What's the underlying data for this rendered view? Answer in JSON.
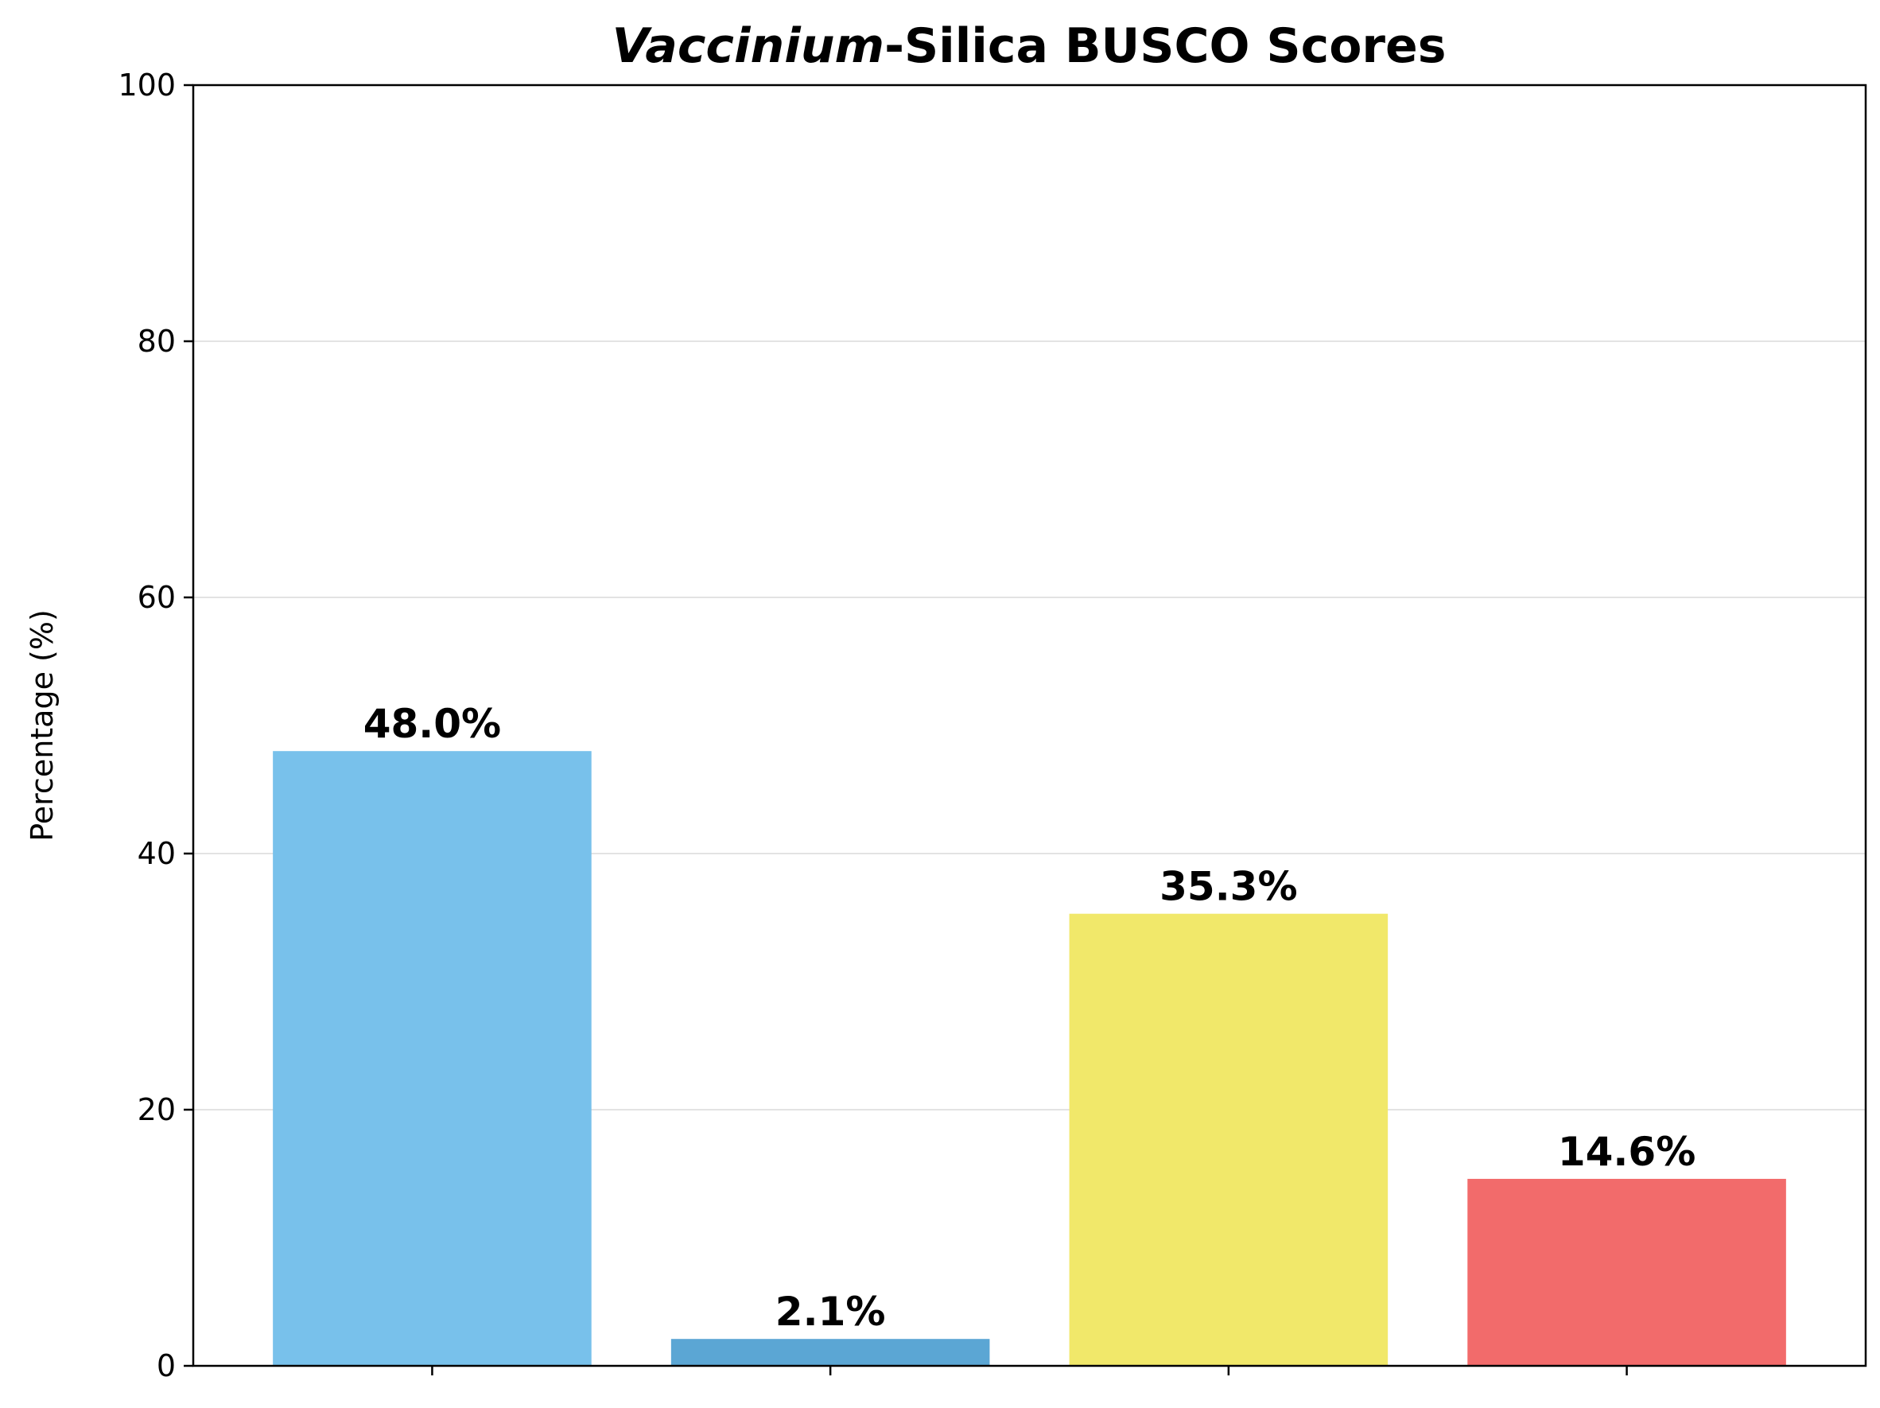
{
  "chart_data": {
    "type": "bar",
    "title_italic": "Vaccinium",
    "title_rest": "-Silica BUSCO Scores",
    "xlabel": "",
    "ylabel": "Percentage (%)",
    "ylim": [
      0,
      100
    ],
    "yticks": [
      0,
      20,
      40,
      60,
      80,
      100
    ],
    "grid": "y",
    "categories": [
      "",
      "",
      "",
      ""
    ],
    "values": [
      48.0,
      2.1,
      35.3,
      14.6
    ],
    "data_labels": [
      "48.0%",
      "2.1%",
      "35.3%",
      "14.6%"
    ],
    "colors": [
      "#78c1eb",
      "#5ba6d4",
      "#f1e86a",
      "#f26b6b"
    ]
  }
}
